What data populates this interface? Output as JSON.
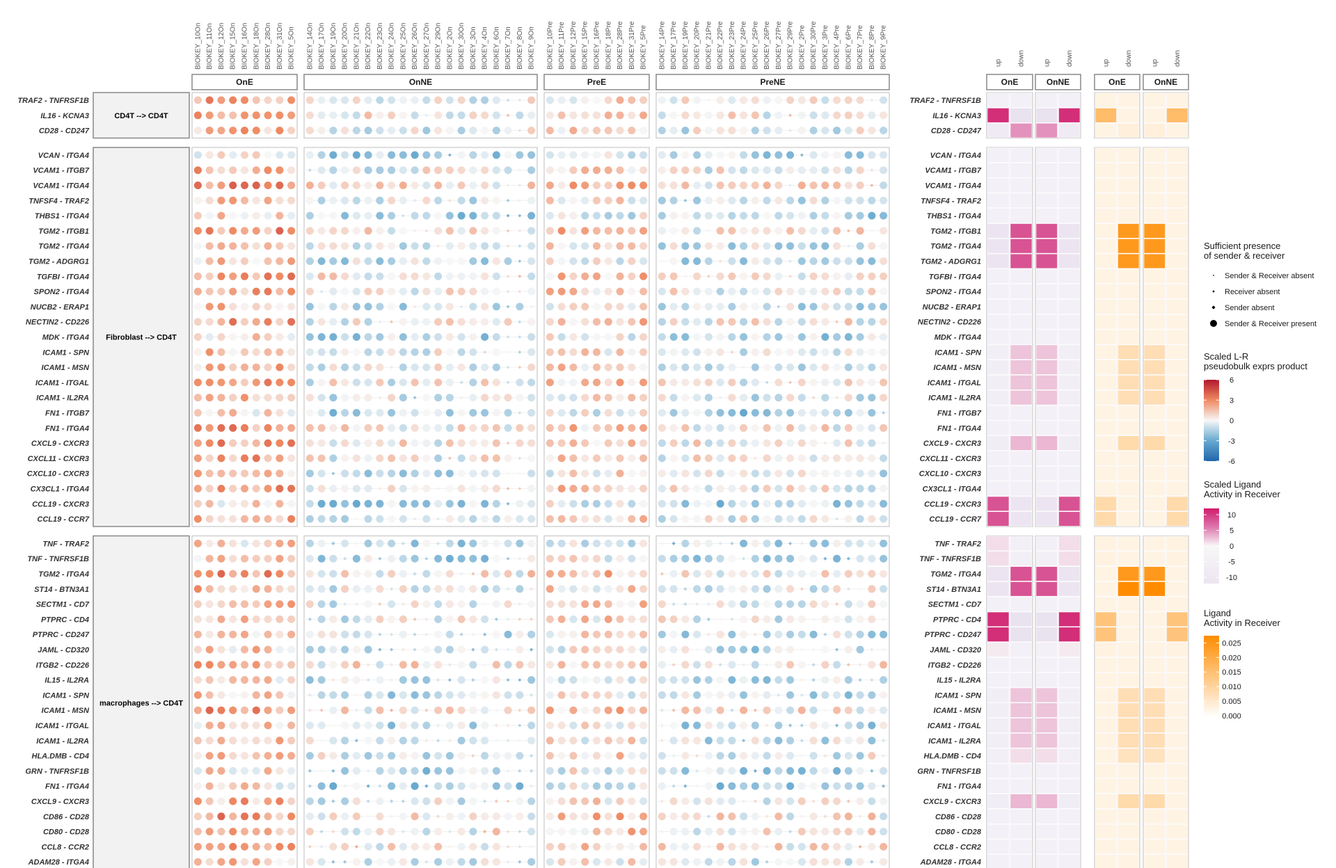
{
  "chart_data": {
    "type": "heatmap",
    "facets": [
      {
        "name": "OnE",
        "samples": [
          "BIOKEY_10On",
          "BIOKEY_11On",
          "BIOKEY_12On",
          "BIOKEY_15On",
          "BIOKEY_16On",
          "BIOKEY_18On",
          "BIOKEY_28On",
          "BIOKEY_31On",
          "BIOKEY_5On"
        ]
      },
      {
        "name": "OnNE",
        "samples": [
          "BIOKEY_14On",
          "BIOKEY_17On",
          "BIOKEY_19On",
          "BIOKEY_20On",
          "BIOKEY_21On",
          "BIOKEY_22On",
          "BIOKEY_23On",
          "BIOKEY_24On",
          "BIOKEY_25On",
          "BIOKEY_26On",
          "BIOKEY_27On",
          "BIOKEY_29On",
          "BIOKEY_2On",
          "BIOKEY_30On",
          "BIOKEY_3On",
          "BIOKEY_4On",
          "BIOKEY_6On",
          "BIOKEY_7On",
          "BIOKEY_8On",
          "BIOKEY_9On"
        ]
      },
      {
        "name": "PreE",
        "samples": [
          "BIOKEY_10Pre",
          "BIOKEY_11Pre",
          "BIOKEY_12Pre",
          "BIOKEY_15Pre",
          "BIOKEY_16Pre",
          "BIOKEY_18Pre",
          "BIOKEY_28Pre",
          "BIOKEY_31Pre",
          "BIOKEY_5Pre"
        ]
      },
      {
        "name": "PreNE",
        "samples": [
          "BIOKEY_14Pre",
          "BIOKEY_17Pre",
          "BIOKEY_19Pre",
          "BIOKEY_20Pre",
          "BIOKEY_21Pre",
          "BIOKEY_22Pre",
          "BIOKEY_23Pre",
          "BIOKEY_24Pre",
          "BIOKEY_25Pre",
          "BIOKEY_26Pre",
          "BIOKEY_27Pre",
          "BIOKEY_29Pre",
          "BIOKEY_2Pre",
          "BIOKEY_30Pre",
          "BIOKEY_3Pre",
          "BIOKEY_4Pre",
          "BIOKEY_6Pre",
          "BIOKEY_7Pre",
          "BIOKEY_8Pre",
          "BIOKEY_9Pre"
        ]
      }
    ],
    "row_groups": [
      {
        "label": "CD4T --> CD4T",
        "rows": [
          "TRAF2 - TNFRSF1B",
          "IL16 - KCNA3",
          "CD28 - CD247"
        ]
      },
      {
        "label": "Fibroblast --> CD4T",
        "rows": [
          "VCAN - ITGA4",
          "VCAM1 - ITGB7",
          "VCAM1 - ITGA4",
          "TNFSF4 - TRAF2",
          "THBS1 - ITGA4",
          "TGM2 - ITGB1",
          "TGM2 - ITGA4",
          "TGM2 - ADGRG1",
          "TGFBI - ITGA4",
          "SPON2 - ITGA4",
          "NUCB2 - ERAP1",
          "NECTIN2 - CD226",
          "MDK - ITGA4",
          "ICAM1 - SPN",
          "ICAM1 - MSN",
          "ICAM1 - ITGAL",
          "ICAM1 - IL2RA",
          "FN1 - ITGB7",
          "FN1 - ITGA4",
          "CXCL9 - CXCR3",
          "CXCL11 - CXCR3",
          "CXCL10 - CXCR3",
          "CX3CL1 - ITGA4",
          "CCL19 - CXCR3",
          "CCL19 - CCR7"
        ]
      },
      {
        "label": "macrophages --> CD4T",
        "rows": [
          "TNF - TRAF2",
          "TNF - TNFRSF1B",
          "TGM2 - ITGA4",
          "ST14 - BTN3A1",
          "SECTM1 - CD7",
          "PTPRC - CD4",
          "PTPRC - CD247",
          "JAML - CD320",
          "ITGB2 - CD226",
          "IL15 - IL2RA",
          "ICAM1 - SPN",
          "ICAM1 - MSN",
          "ICAM1 - ITGAL",
          "ICAM1 - IL2RA",
          "HLA.DMB - CD4",
          "GRN - TNFRSF1B",
          "FN1 - ITGA4",
          "CXCL9 - CXCR3",
          "CD86 - CD28",
          "CD80 - CD28",
          "CCL8 - CCR2",
          "ADAM28 - ITGA4"
        ]
      }
    ],
    "activity_panel": {
      "facets": [
        "OnE",
        "OnNE"
      ],
      "directions": [
        "up",
        "down"
      ],
      "scaled_ligand_activity": {
        "CD4T --> CD4T|IL16 - KCNA3": {
          "OnE": 9,
          "OnNE": -9
        },
        "CD4T --> CD4T|CD28 - CD247": {
          "OnE": -4,
          "OnNE": 4
        },
        "Fibroblast --> CD4T|TGM2 - ITGB1": {
          "OnE": -7,
          "OnNE": 7
        },
        "Fibroblast --> CD4T|TGM2 - ITGA4": {
          "OnE": -7,
          "OnNE": 7
        },
        "Fibroblast --> CD4T|TGM2 - ADGRG1": {
          "OnE": -7,
          "OnNE": 7
        },
        "Fibroblast --> CD4T|ICAM1 - SPN": {
          "OnE": -2,
          "OnNE": 2
        },
        "Fibroblast --> CD4T|ICAM1 - MSN": {
          "OnE": -2,
          "OnNE": 2
        },
        "Fibroblast --> CD4T|ICAM1 - ITGAL": {
          "OnE": -2,
          "OnNE": 2
        },
        "Fibroblast --> CD4T|ICAM1 - IL2RA": {
          "OnE": -2,
          "OnNE": 2
        },
        "Fibroblast --> CD4T|CXCL9 - CXCR3": {
          "OnE": -2.5,
          "OnNE": 2.5
        },
        "Fibroblast --> CD4T|CCL19 - CXCR3": {
          "OnE": 7,
          "OnNE": -7
        },
        "Fibroblast --> CD4T|CCL19 - CCR7": {
          "OnE": 7,
          "OnNE": -7
        },
        "macrophages --> CD4T|TNF - TRAF2": {
          "OnE": 1,
          "OnNE": -1
        },
        "macrophages --> CD4T|TNF - TNFRSF1B": {
          "OnE": 1,
          "OnNE": -1
        },
        "macrophages --> CD4T|TGM2 - ITGA4": {
          "OnE": -7,
          "OnNE": 7
        },
        "macrophages --> CD4T|ST14 - BTN3A1": {
          "OnE": -7,
          "OnNE": 7
        },
        "macrophages --> CD4T|PTPRC - CD4": {
          "OnE": 9,
          "OnNE": -9
        },
        "macrophages --> CD4T|PTPRC - CD247": {
          "OnE": 9,
          "OnNE": -9
        },
        "macrophages --> CD4T|JAML - CD320": {
          "OnE": 0.5,
          "OnNE": -0.5
        },
        "macrophages --> CD4T|ICAM1 - SPN": {
          "OnE": -2,
          "OnNE": 2
        },
        "macrophages --> CD4T|ICAM1 - MSN": {
          "OnE": -2,
          "OnNE": 2
        },
        "macrophages --> CD4T|ICAM1 - ITGAL": {
          "OnE": -2,
          "OnNE": 2
        },
        "macrophages --> CD4T|ICAM1 - IL2RA": {
          "OnE": -2,
          "OnNE": 2
        },
        "macrophages --> CD4T|HLA.DMB - CD4": {
          "OnE": -1,
          "OnNE": 1
        },
        "macrophages --> CD4T|CXCL9 - CXCR3": {
          "OnE": -2.5,
          "OnNE": 2.5
        }
      },
      "ligand_activity": {
        "CD4T --> CD4T|IL16 - KCNA3": 0.014,
        "CD4T --> CD4T|CD28 - CD247": 0.002,
        "Fibroblast --> CD4T|TGM2 - ITGB1": 0.022,
        "Fibroblast --> CD4T|TGM2 - ITGA4": 0.022,
        "Fibroblast --> CD4T|TGM2 - ADGRG1": 0.022,
        "Fibroblast --> CD4T|ICAM1 - SPN": 0.006,
        "Fibroblast --> CD4T|ICAM1 - MSN": 0.006,
        "Fibroblast --> CD4T|ICAM1 - ITGAL": 0.006,
        "Fibroblast --> CD4T|ICAM1 - IL2RA": 0.006,
        "Fibroblast --> CD4T|CXCL9 - CXCR3": 0.007,
        "Fibroblast --> CD4T|CCL19 - CXCR3": 0.007,
        "Fibroblast --> CD4T|CCL19 - CCR7": 0.007,
        "macrophages --> CD4T|TGM2 - ITGA4": 0.022,
        "macrophages --> CD4T|ST14 - BTN3A1": 0.025,
        "macrophages --> CD4T|PTPRC - CD4": 0.012,
        "macrophages --> CD4T|PTPRC - CD247": 0.012,
        "macrophages --> CD4T|ICAM1 - SPN": 0.006,
        "macrophages --> CD4T|ICAM1 - MSN": 0.006,
        "macrophages --> CD4T|ICAM1 - ITGAL": 0.006,
        "macrophages --> CD4T|ICAM1 - IL2RA": 0.006,
        "macrophages --> CD4T|HLA.DMB - CD4": 0.005,
        "macrophages --> CD4T|CXCL9 - CXCR3": 0.007
      }
    },
    "legends": {
      "presence": {
        "title": [
          "Sufficient presence",
          "of sender & receiver"
        ],
        "items": [
          "Sender & Receiver absent",
          "Receiver absent",
          "Sender absent",
          "Sender & Receiver present"
        ]
      },
      "lr_product": {
        "title": [
          "Scaled L-R",
          "pseudobulk exprs product"
        ],
        "ticks": [
          6,
          3,
          0,
          -3,
          -6
        ],
        "colors": [
          "#b2182b",
          "#ef8a62",
          "#f7f7f7",
          "#67a9cf",
          "#2166ac"
        ]
      },
      "scaled_ligand": {
        "title": [
          "Scaled Ligand",
          "Activity in Receiver"
        ],
        "ticks": [
          10,
          5,
          0,
          -5,
          -10
        ],
        "colors": [
          "#d01c6b",
          "#de77ae",
          "#f7f7f7"
        ]
      },
      "ligand_activity": {
        "title": [
          "Ligand",
          "Activity in Receiver"
        ],
        "ticks": [
          0.025,
          0.02,
          0.015,
          0.01,
          0.005,
          0.0
        ],
        "tick_labels": [
          "0.025",
          "0.020",
          "0.015",
          "0.010",
          "0.005",
          "0.000"
        ],
        "colors": [
          "#ff8c00",
          "#ffffff"
        ]
      }
    },
    "lr_product_range": [
      -6,
      6
    ]
  }
}
